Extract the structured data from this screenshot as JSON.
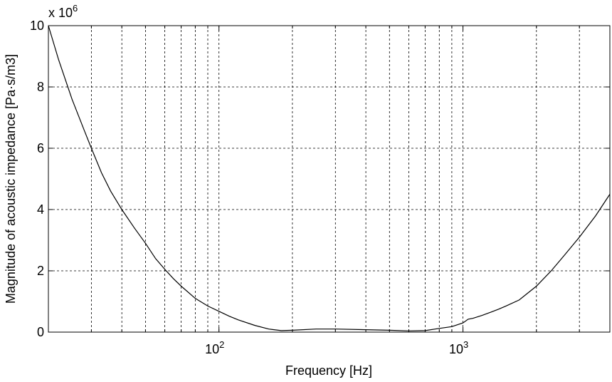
{
  "chart_data": {
    "type": "line",
    "xlabel": "Frequency [Hz]",
    "ylabel": "Magnitude of acoustic impedance [Pa·s/m3]",
    "y_multiplier_label": "x 10",
    "y_multiplier_exponent": "6",
    "x_scale": "log",
    "xlim": [
      20,
      4000
    ],
    "ylim": [
      0,
      10
    ],
    "grid": true,
    "x_major_ticks": [
      {
        "value": 100,
        "base": "10",
        "exp": "2"
      },
      {
        "value": 1000,
        "base": "10",
        "exp": "3"
      }
    ],
    "x_grid_values": [
      30,
      40,
      50,
      60,
      70,
      80,
      90,
      100,
      200,
      300,
      400,
      500,
      600,
      700,
      800,
      900,
      1000,
      2000,
      3000
    ],
    "y_ticks": [
      0,
      2,
      4,
      6,
      8,
      10
    ],
    "line_color": "#000000",
    "series": [
      {
        "x": [
          20,
          22,
          25,
          28,
          30,
          33,
          36,
          40,
          45,
          50,
          55,
          60,
          65,
          70,
          80,
          90,
          100,
          110,
          120,
          140,
          160,
          180,
          200,
          250,
          300,
          400,
          500,
          600,
          700,
          800,
          900,
          1000,
          1050,
          1100,
          1200,
          1300,
          1400,
          1500,
          1700,
          2000,
          2300,
          2600,
          3000,
          3500,
          4000
        ],
        "y": [
          10,
          8.9,
          7.6,
          6.6,
          6.0,
          5.2,
          4.6,
          4.0,
          3.4,
          2.9,
          2.4,
          2.05,
          1.75,
          1.5,
          1.1,
          0.85,
          0.68,
          0.52,
          0.4,
          0.22,
          0.1,
          0.05,
          0.06,
          0.1,
          0.1,
          0.08,
          0.06,
          0.04,
          0.05,
          0.12,
          0.18,
          0.3,
          0.42,
          0.45,
          0.55,
          0.65,
          0.75,
          0.85,
          1.05,
          1.5,
          2.0,
          2.5,
          3.1,
          3.8,
          4.5
        ]
      }
    ]
  }
}
